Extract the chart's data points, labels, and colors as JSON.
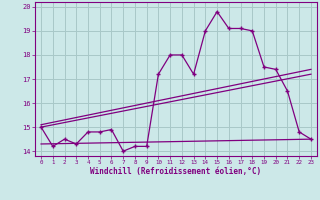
{
  "xlabel": "Windchill (Refroidissement éolien,°C)",
  "bg_color": "#cce8e8",
  "grid_color": "#a8c8c8",
  "line_color": "#800080",
  "marker_color": "#800080",
  "x_data": [
    0,
    1,
    2,
    3,
    4,
    5,
    6,
    7,
    8,
    9,
    10,
    11,
    12,
    13,
    14,
    15,
    16,
    17,
    18,
    19,
    20,
    21,
    22,
    23
  ],
  "y_main": [
    15.0,
    14.2,
    14.5,
    14.3,
    14.8,
    14.8,
    14.9,
    14.0,
    14.2,
    14.2,
    17.2,
    18.0,
    18.0,
    17.2,
    19.0,
    19.8,
    19.1,
    19.1,
    19.0,
    17.5,
    17.4,
    16.5,
    14.8,
    14.5
  ],
  "y_line1_x": [
    0,
    23
  ],
  "y_line1_y": [
    15.0,
    17.2
  ],
  "y_line2_x": [
    0,
    23
  ],
  "y_line2_y": [
    15.1,
    17.4
  ],
  "y_line3_x": [
    0,
    23
  ],
  "y_line3_y": [
    14.3,
    14.5
  ],
  "ylim": [
    13.8,
    20.2
  ],
  "yticks": [
    14,
    15,
    16,
    17,
    18,
    19,
    20
  ],
  "xlim": [
    -0.5,
    23.5
  ],
  "xticks": [
    0,
    1,
    2,
    3,
    4,
    5,
    6,
    7,
    8,
    9,
    10,
    11,
    12,
    13,
    14,
    15,
    16,
    17,
    18,
    19,
    20,
    21,
    22,
    23
  ]
}
